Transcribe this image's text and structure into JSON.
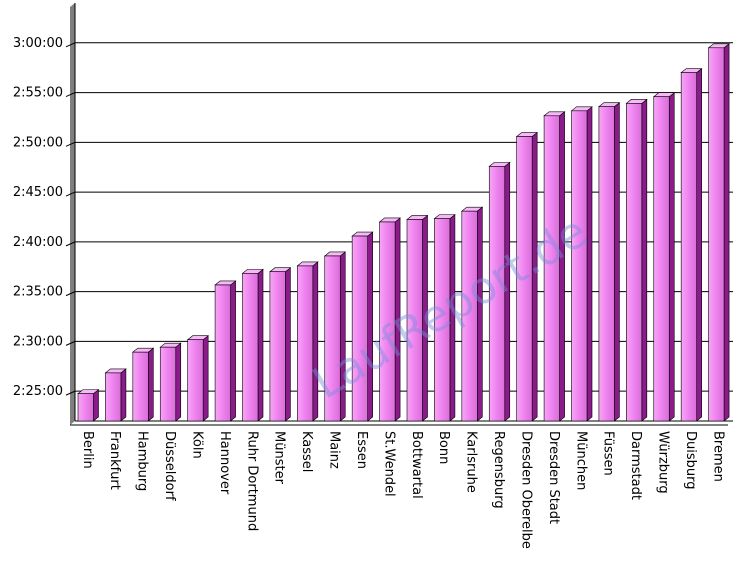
{
  "chart_data": {
    "type": "bar",
    "title": "",
    "xlabel": "",
    "ylabel": "",
    "y_tick_labels": [
      "2:25:00",
      "2:30:00",
      "2:35:00",
      "2:40:00",
      "2:45:00",
      "2:50:00",
      "2:55:00",
      "3:00:00"
    ],
    "y_ticks_seconds": [
      8700,
      9000,
      9300,
      9600,
      9900,
      10200,
      10500,
      10800
    ],
    "ylim_seconds": [
      8520,
      11040
    ],
    "categories": [
      "Berlin",
      "Frankfurt",
      "Hamburg",
      "Düsseldorf",
      "Köln",
      "Hannover",
      "Ruhr Dortmund",
      "Münster",
      "Kassel",
      "Mainz",
      "Essen",
      "St.Wendel",
      "Bottwartal",
      "Bonn",
      "Karlsruhe",
      "Regensburg",
      "Dresden Oberelbe",
      "Dresden Stadt",
      "München",
      "Füssen",
      "Darmstadt",
      "Würzburg",
      "Duisburg",
      "Bremen"
    ],
    "values": [
      "2:24:45",
      "2:26:50",
      "2:28:55",
      "2:29:25",
      "2:30:10",
      "2:35:40",
      "2:36:50",
      "2:37:00",
      "2:37:35",
      "2:38:35",
      "2:40:35",
      "2:42:00",
      "2:42:15",
      "2:42:20",
      "2:43:05",
      "2:47:35",
      "2:50:35",
      "2:52:40",
      "2:53:10",
      "2:53:35",
      "2:53:55",
      "2:54:35",
      "2:57:00",
      "2:59:30"
    ],
    "grid": true,
    "legend": "none",
    "bar_color": "#ee82ee",
    "bar_side_color": "#8b1a8b",
    "watermark": "LaufReport.de"
  }
}
